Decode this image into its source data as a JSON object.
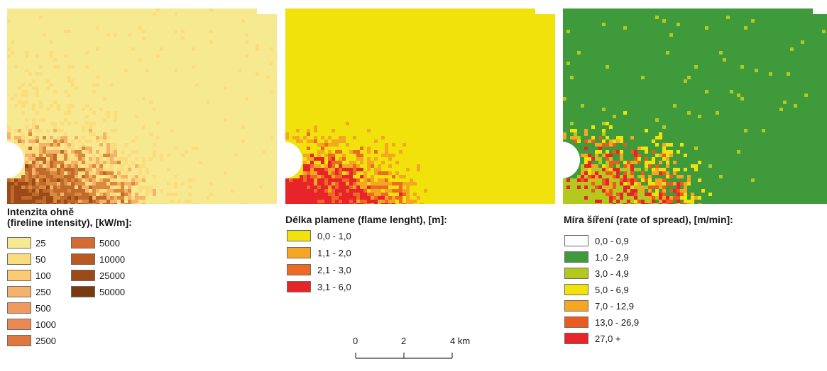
{
  "panels": [
    {
      "id": "intensity",
      "legend_title_lines": [
        "Intenzita ohně",
        "(fireline intensity), [kW/m]:"
      ],
      "classes": [
        {
          "label": "25",
          "color": "#f7e98f"
        },
        {
          "label": "50",
          "color": "#fcdc7d"
        },
        {
          "label": "100",
          "color": "#fbca72"
        },
        {
          "label": "250",
          "color": "#f6b26b"
        },
        {
          "label": "500",
          "color": "#f19a5e"
        },
        {
          "label": "1000",
          "color": "#ec8952"
        },
        {
          "label": "2500",
          "color": "#e0773d"
        },
        {
          "label": "5000",
          "color": "#d36b32"
        },
        {
          "label": "10000",
          "color": "#bb5a20"
        },
        {
          "label": "25000",
          "color": "#9c4a17"
        },
        {
          "label": "50000",
          "color": "#7a3a10"
        }
      ],
      "map_palette": [
        "#f7e98f",
        "#fcdc7d",
        "#f6b26b",
        "#d98a3d",
        "#bf6a2a",
        "#9c4a17"
      ]
    },
    {
      "id": "flame",
      "legend_title": "Délka plamene (flame lenght), [m]:",
      "classes": [
        {
          "label": "0,0 - 1,0",
          "color": "#f0e20a"
        },
        {
          "label": "1,1 - 2,0",
          "color": "#f5a623"
        },
        {
          "label": "2,1 - 3,0",
          "color": "#ee6a23"
        },
        {
          "label": "3,1 - 6,0",
          "color": "#e62429"
        }
      ],
      "map_palette": [
        "#f0e20a",
        "#f5a623",
        "#ee6a23",
        "#e62429"
      ]
    },
    {
      "id": "spread",
      "legend_title": "Míra šíření (rate of spread), [m/min]:",
      "classes": [
        {
          "label": "0,0 - 0,9",
          "color": "#ffffff"
        },
        {
          "label": "1,0 - 2,9",
          "color": "#3f9a3c"
        },
        {
          "label": "3,0 - 4,9",
          "color": "#b4c81e"
        },
        {
          "label": "5,0 - 6,9",
          "color": "#f0e20a"
        },
        {
          "label": "7,0 - 12,9",
          "color": "#f5a623"
        },
        {
          "label": "13,0 - 26,9",
          "color": "#ec5a20"
        },
        {
          "label": "27,0 +",
          "color": "#e62429"
        }
      ],
      "map_palette": [
        "#3f9a3c",
        "#f0e20a",
        "#f5a623",
        "#ec5a20",
        "#e62429",
        "#b4c81e"
      ]
    }
  ],
  "scale_bar": {
    "labels": [
      "0",
      "2",
      "4 km"
    ]
  }
}
